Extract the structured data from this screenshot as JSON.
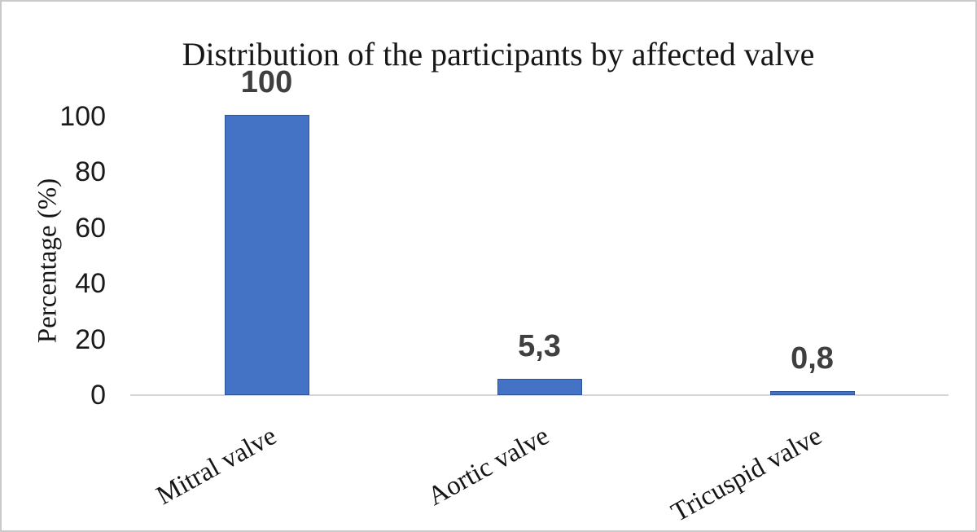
{
  "frame": {
    "background": "#ffffff",
    "border_color": "#c9c9c9"
  },
  "chart_data": {
    "type": "bar",
    "title": "Distribution of the participants by affected valve",
    "xlabel": "",
    "ylabel": "Percentage (%)",
    "categories": [
      "Mitral valve",
      "Aortic valve",
      "Tricuspid valve"
    ],
    "values": [
      100,
      5.3,
      0.8
    ],
    "data_labels": [
      "100",
      "5,3",
      "0,8"
    ],
    "decimal_separator": ",",
    "yticks": [
      0,
      20,
      40,
      60,
      80,
      100
    ],
    "ylim": [
      0,
      100
    ],
    "grid": false,
    "legend": false,
    "category_label_rotation_deg": -29,
    "colors": {
      "bar_fill": "#4472C4",
      "bar_border": "#2F5597",
      "axis_line": "#D6D6D6",
      "title_text": "#161616",
      "tick_text": "#1A1A1A",
      "data_label_text": "#3F3F3F"
    }
  }
}
